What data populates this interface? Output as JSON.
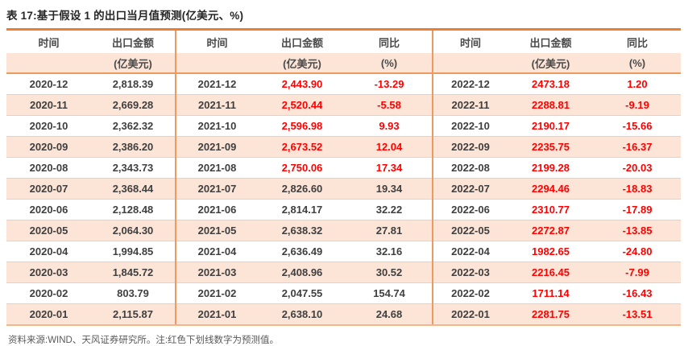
{
  "title": "表 17:基于假设 1 的出口当月值预测(亿美元、%)",
  "source_note": "资料来源:WIND、天风证券研究所。注:红色下划线数字为预测值。",
  "colors": {
    "accent_orange": "#ED7D31",
    "divider_orange": "#EC9A62",
    "row_peach": "#FCE4D6",
    "separator_peach": "#F8CBAD",
    "forecast_red": "#FF0000",
    "text_dark": "#3F3F3F"
  },
  "table": {
    "columns": [
      {
        "label": "时间",
        "sub": ""
      },
      {
        "label": "出口金额",
        "sub": "(亿美元)"
      },
      {
        "label": "时间",
        "sub": ""
      },
      {
        "label": "出口金额",
        "sub": "(亿美元)"
      },
      {
        "label": "同比",
        "sub": "(%)"
      },
      {
        "label": "时间",
        "sub": ""
      },
      {
        "label": "出口金额",
        "sub": "(亿美元)"
      },
      {
        "label": "同比",
        "sub": "(%)"
      }
    ],
    "rows": [
      {
        "cells": [
          "2020-12",
          "2,818.39",
          "2021-12",
          "2,443.90",
          "-13.29",
          "2022-12",
          "2473.18",
          "1.20"
        ],
        "red": [
          0,
          0,
          0,
          1,
          1,
          0,
          1,
          1
        ]
      },
      {
        "cells": [
          "2020-11",
          "2,669.28",
          "2021-11",
          "2,520.44",
          "-5.58",
          "2022-11",
          "2288.81",
          "-9.19"
        ],
        "red": [
          0,
          0,
          0,
          1,
          1,
          0,
          1,
          1
        ]
      },
      {
        "cells": [
          "2020-10",
          "2,362.32",
          "2021-10",
          "2,596.98",
          "9.93",
          "2022-10",
          "2190.17",
          "-15.66"
        ],
        "red": [
          0,
          0,
          0,
          1,
          1,
          0,
          1,
          1
        ]
      },
      {
        "cells": [
          "2020-09",
          "2,386.20",
          "2021-09",
          "2,673.52",
          "12.04",
          "2022-09",
          "2235.75",
          "-16.37"
        ],
        "red": [
          0,
          0,
          0,
          1,
          1,
          0,
          1,
          1
        ]
      },
      {
        "cells": [
          "2020-08",
          "2,343.73",
          "2021-08",
          "2,750.06",
          "17.34",
          "2022-08",
          "2199.28",
          "-20.03"
        ],
        "red": [
          0,
          0,
          0,
          1,
          1,
          0,
          1,
          1
        ]
      },
      {
        "cells": [
          "2020-07",
          "2,368.44",
          "2021-07",
          "2,826.60",
          "19.34",
          "2022-07",
          "2294.46",
          "-18.83"
        ],
        "red": [
          0,
          0,
          0,
          0,
          0,
          0,
          1,
          1
        ]
      },
      {
        "cells": [
          "2020-06",
          "2,128.48",
          "2021-06",
          "2,814.17",
          "32.22",
          "2022-06",
          "2310.77",
          "-17.89"
        ],
        "red": [
          0,
          0,
          0,
          0,
          0,
          0,
          1,
          1
        ]
      },
      {
        "cells": [
          "2020-05",
          "2,064.30",
          "2021-05",
          "2,638.32",
          "27.81",
          "2022-05",
          "2272.87",
          "-13.85"
        ],
        "red": [
          0,
          0,
          0,
          0,
          0,
          0,
          1,
          1
        ]
      },
      {
        "cells": [
          "2020-04",
          "1,994.85",
          "2021-04",
          "2,636.49",
          "32.16",
          "2022-04",
          "1982.65",
          "-24.80"
        ],
        "red": [
          0,
          0,
          0,
          0,
          0,
          0,
          1,
          1
        ]
      },
      {
        "cells": [
          "2020-03",
          "1,845.72",
          "2021-03",
          "2,408.96",
          "30.52",
          "2022-03",
          "2216.45",
          "-7.99"
        ],
        "red": [
          0,
          0,
          0,
          0,
          0,
          0,
          1,
          1
        ]
      },
      {
        "cells": [
          "2020-02",
          "803.79",
          "2021-02",
          "2,047.55",
          "154.74",
          "2022-02",
          "1711.14",
          "-16.43"
        ],
        "red": [
          0,
          0,
          0,
          0,
          0,
          0,
          1,
          1
        ]
      },
      {
        "cells": [
          "2020-01",
          "2,115.87",
          "2021-01",
          "2,638.10",
          "24.68",
          "2022-01",
          "2281.75",
          "-13.51"
        ],
        "red": [
          0,
          0,
          0,
          0,
          0,
          0,
          1,
          1
        ]
      }
    ]
  }
}
